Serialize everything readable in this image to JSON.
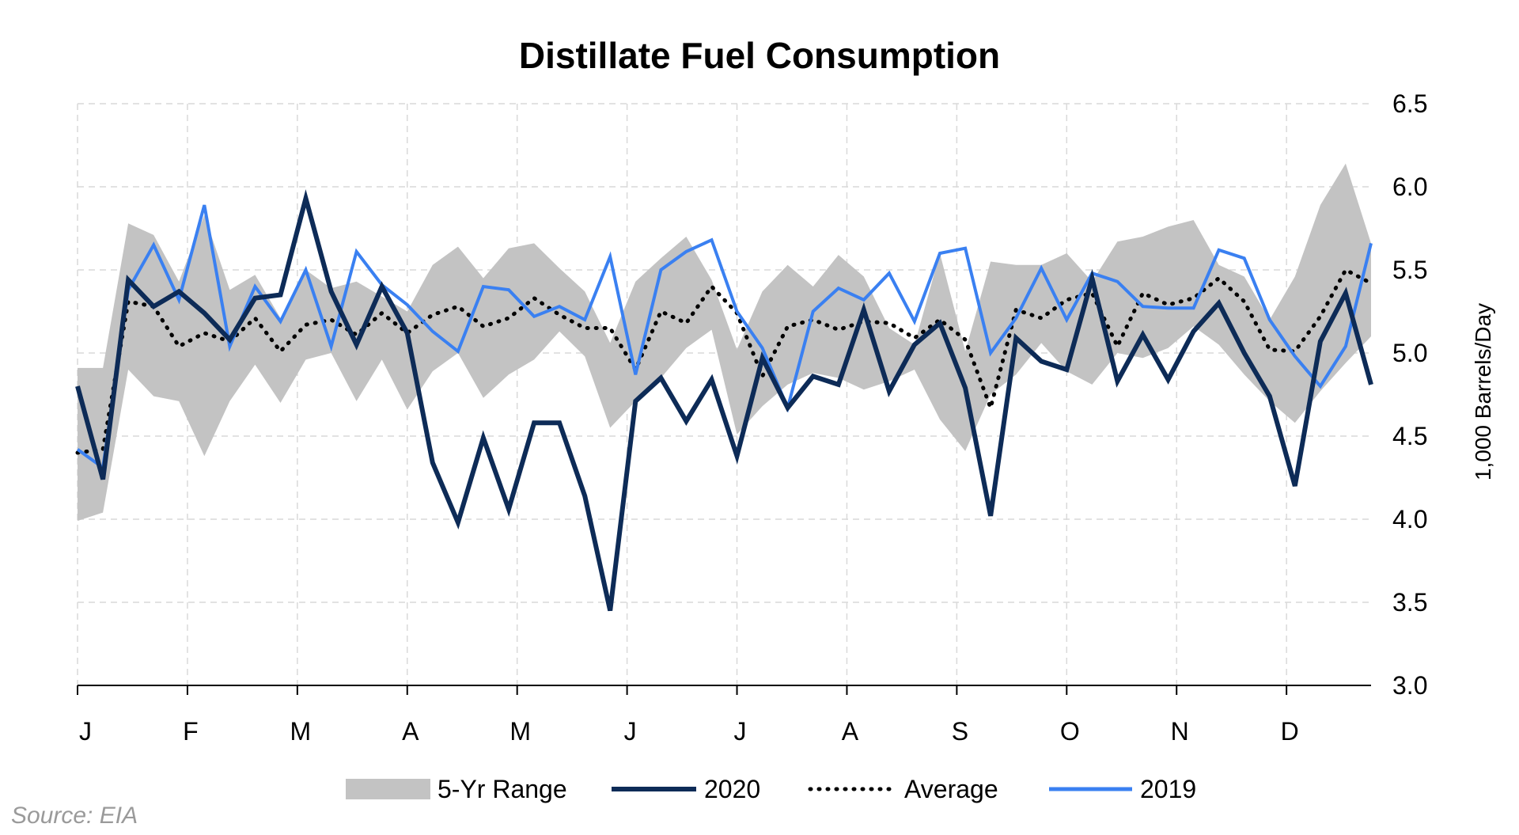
{
  "chart_data": {
    "type": "line",
    "title": "Distillate Fuel Consumption",
    "ylabel": "1,000 Barrels/Day",
    "xlabel": "",
    "ylim": [
      3.0,
      6.5
    ],
    "yticks": [
      "6.5",
      "6.0",
      "5.5",
      "5.0",
      "4.5",
      "4.0",
      "3.5",
      "3.0"
    ],
    "month_labels": [
      "J",
      "F",
      "M",
      "A",
      "M",
      "J",
      "J",
      "A",
      "S",
      "O",
      "N",
      "D"
    ],
    "weeks": 52,
    "y_axis_position": "right",
    "grid": true,
    "legend_position": "bottom",
    "source": "Source: EIA",
    "range": {
      "name": "5-Yr Range",
      "color": "#c3c3c3",
      "low": [
        3.99,
        4.04,
        4.9,
        4.74,
        4.71,
        4.38,
        4.71,
        4.93,
        4.7,
        4.96,
        5.0,
        4.71,
        4.96,
        4.66,
        4.89,
        5.0,
        4.73,
        4.87,
        4.96,
        5.13,
        4.98,
        4.55,
        4.71,
        4.85,
        5.03,
        5.14,
        4.51,
        4.68,
        4.81,
        4.88,
        4.85,
        4.78,
        4.83,
        4.9,
        4.6,
        4.41,
        4.75,
        4.87,
        5.06,
        4.89,
        4.81,
        5.0,
        4.97,
        5.03,
        5.16,
        5.05,
        4.87,
        4.71,
        4.58,
        4.77,
        4.94,
        5.1
      ],
      "high": [
        4.91,
        4.91,
        5.78,
        5.71,
        5.43,
        5.83,
        5.38,
        5.47,
        5.21,
        5.5,
        5.39,
        5.43,
        5.34,
        5.25,
        5.53,
        5.64,
        5.45,
        5.63,
        5.66,
        5.51,
        5.37,
        5.06,
        5.43,
        5.57,
        5.7,
        5.44,
        5.02,
        5.37,
        5.53,
        5.4,
        5.59,
        5.46,
        5.15,
        5.05,
        5.6,
        5.01,
        5.55,
        5.53,
        5.53,
        5.6,
        5.43,
        5.67,
        5.7,
        5.76,
        5.8,
        5.53,
        5.46,
        5.2,
        5.46,
        5.89,
        6.14,
        5.66
      ]
    },
    "series": [
      {
        "name": "2020",
        "color": "#0d2b57",
        "values": [
          4.8,
          4.24,
          5.44,
          5.28,
          5.37,
          5.24,
          5.08,
          5.33,
          5.35,
          5.93,
          5.37,
          5.05,
          5.4,
          5.12,
          4.34,
          3.98,
          4.49,
          4.06,
          4.58,
          4.58,
          4.14,
          3.45,
          4.71,
          4.85,
          4.59,
          4.84,
          4.38,
          4.97,
          4.67,
          4.86,
          4.81,
          5.26,
          4.77,
          5.05,
          5.18,
          4.79,
          4.02,
          5.09,
          4.95,
          4.9,
          5.45,
          4.83,
          5.11,
          4.84,
          5.13,
          5.3,
          5.0,
          4.74,
          4.2,
          5.07,
          5.36,
          4.81
        ]
      },
      {
        "name": "Average",
        "color": "#000000",
        "values": [
          4.4,
          4.42,
          5.31,
          5.28,
          5.04,
          5.12,
          5.07,
          5.21,
          5.01,
          5.17,
          5.2,
          5.11,
          5.24,
          5.12,
          5.23,
          5.28,
          5.16,
          5.21,
          5.33,
          5.23,
          5.15,
          5.15,
          4.9,
          5.25,
          5.18,
          5.4,
          5.24,
          4.86,
          5.16,
          5.2,
          5.14,
          5.19,
          5.18,
          5.09,
          5.2,
          5.08,
          4.67,
          5.26,
          5.21,
          5.32,
          5.36,
          5.04,
          5.36,
          5.29,
          5.33,
          5.45,
          5.31,
          5.02,
          5.01,
          5.22,
          5.5,
          5.42
        ]
      },
      {
        "name": "2019",
        "color": "#3a80f1",
        "values": [
          4.42,
          4.31,
          5.38,
          5.65,
          5.32,
          5.89,
          5.04,
          5.4,
          5.19,
          5.5,
          5.04,
          5.61,
          5.41,
          5.29,
          5.13,
          5.01,
          5.4,
          5.38,
          5.22,
          5.28,
          5.2,
          5.58,
          4.87,
          5.5,
          5.61,
          5.68,
          5.25,
          5.03,
          4.67,
          5.25,
          5.39,
          5.32,
          5.48,
          5.19,
          5.6,
          5.63,
          5.0,
          5.21,
          5.51,
          5.2,
          5.48,
          5.43,
          5.28,
          5.27,
          5.27,
          5.62,
          5.57,
          5.2,
          4.98,
          4.8,
          5.04,
          5.66
        ]
      }
    ]
  }
}
